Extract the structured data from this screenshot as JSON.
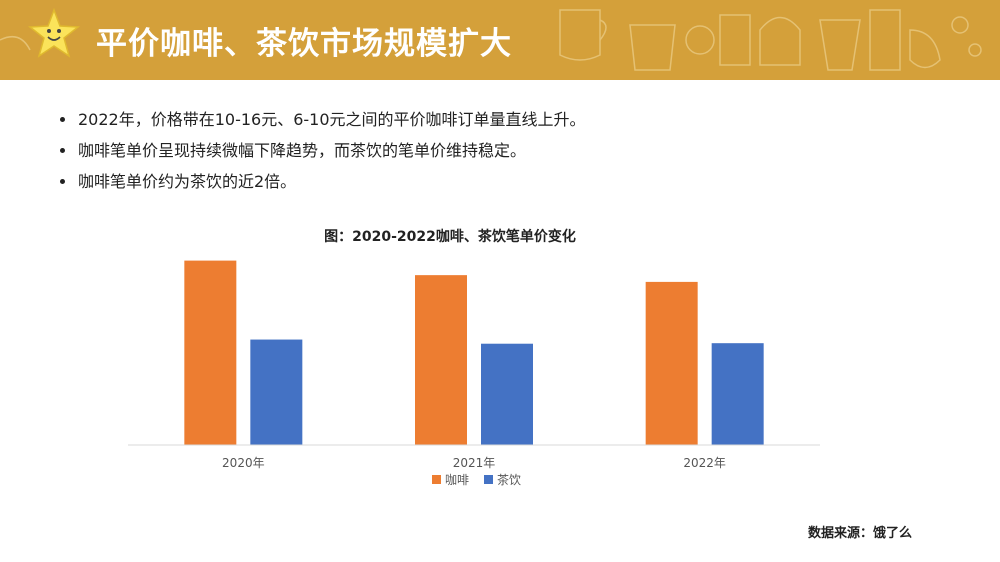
{
  "header": {
    "title": "平价咖啡、茶饮市场规模扩大"
  },
  "bullets": [
    "2022年，价格带在10-16元、6-10元之间的平价咖啡订单量直线上升。",
    "咖啡笔单价呈现持续微幅下降趋势，而茶饮的笔单价维持稳定。",
    "咖啡笔单价约为茶饮的近2倍。"
  ],
  "source": "数据来源：饿了么",
  "chart_data": {
    "type": "bar",
    "title": "图：2020-2022咖啡、茶饮笔单价变化",
    "categories": [
      "2020年",
      "2021年",
      "2022年"
    ],
    "series": [
      {
        "name": "咖啡",
        "color": "#ed7d31",
        "values": [
          35.5,
          32.7,
          31.4
        ]
      },
      {
        "name": "茶饮",
        "color": "#4472c4",
        "values": [
          20.3,
          19.5,
          19.6
        ]
      }
    ],
    "ylim": [
      0,
      36
    ],
    "grid": false,
    "legend": "bottom"
  },
  "colors": {
    "banner": "#d4a03a",
    "star": "#fbe35a"
  }
}
